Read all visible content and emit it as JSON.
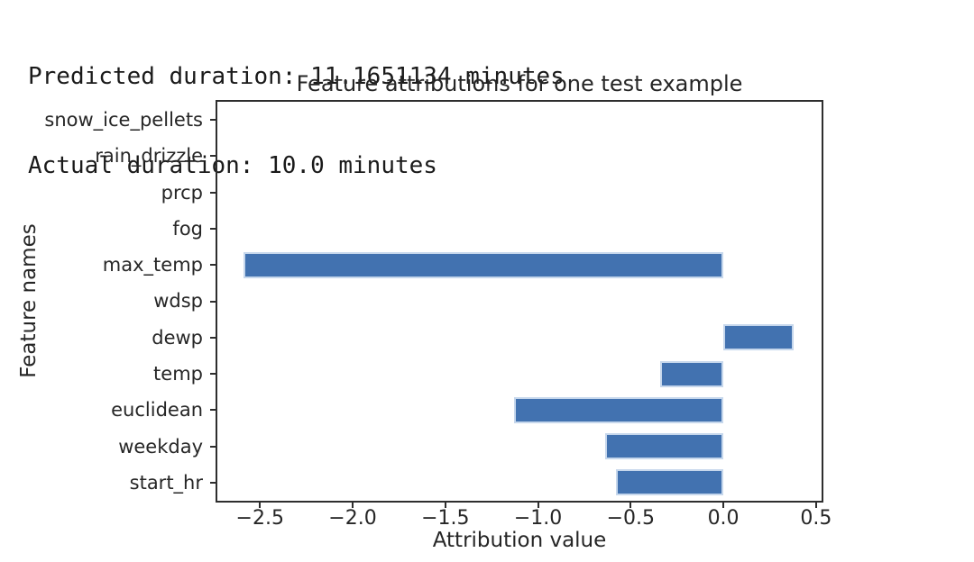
{
  "header": {
    "line1": "Predicted duration: 11.1651134 minutes",
    "line2": "Actual duration: 10.0 minutes"
  },
  "chart_data": {
    "type": "bar",
    "orientation": "horizontal",
    "title": "Feature attributions for one test example",
    "xlabel": "Attribution value",
    "ylabel": "Feature names",
    "categories_top_to_bottom": [
      "snow_ice_pellets",
      "rain_drizzle",
      "prcp",
      "fog",
      "max_temp",
      "wdsp",
      "dewp",
      "temp",
      "euclidean",
      "weekday",
      "start_hr"
    ],
    "values": [
      0,
      0,
      0,
      0,
      -2.59,
      0,
      0.38,
      -0.34,
      -1.13,
      -0.64,
      -0.58
    ],
    "xlim": [
      -2.73,
      0.53
    ],
    "xticks": [
      -2.5,
      -2.0,
      -1.5,
      -1.0,
      -0.5,
      0.0,
      0.5
    ],
    "xtick_labels": [
      "−2.5",
      "−2.0",
      "−1.5",
      "−1.0",
      "−0.5",
      "0.0",
      "0.5"
    ],
    "bar_color": "#4272b0",
    "bar_edge_color": "#c6d7ec",
    "grid": false,
    "legend": null,
    "background": "#ffffff"
  }
}
